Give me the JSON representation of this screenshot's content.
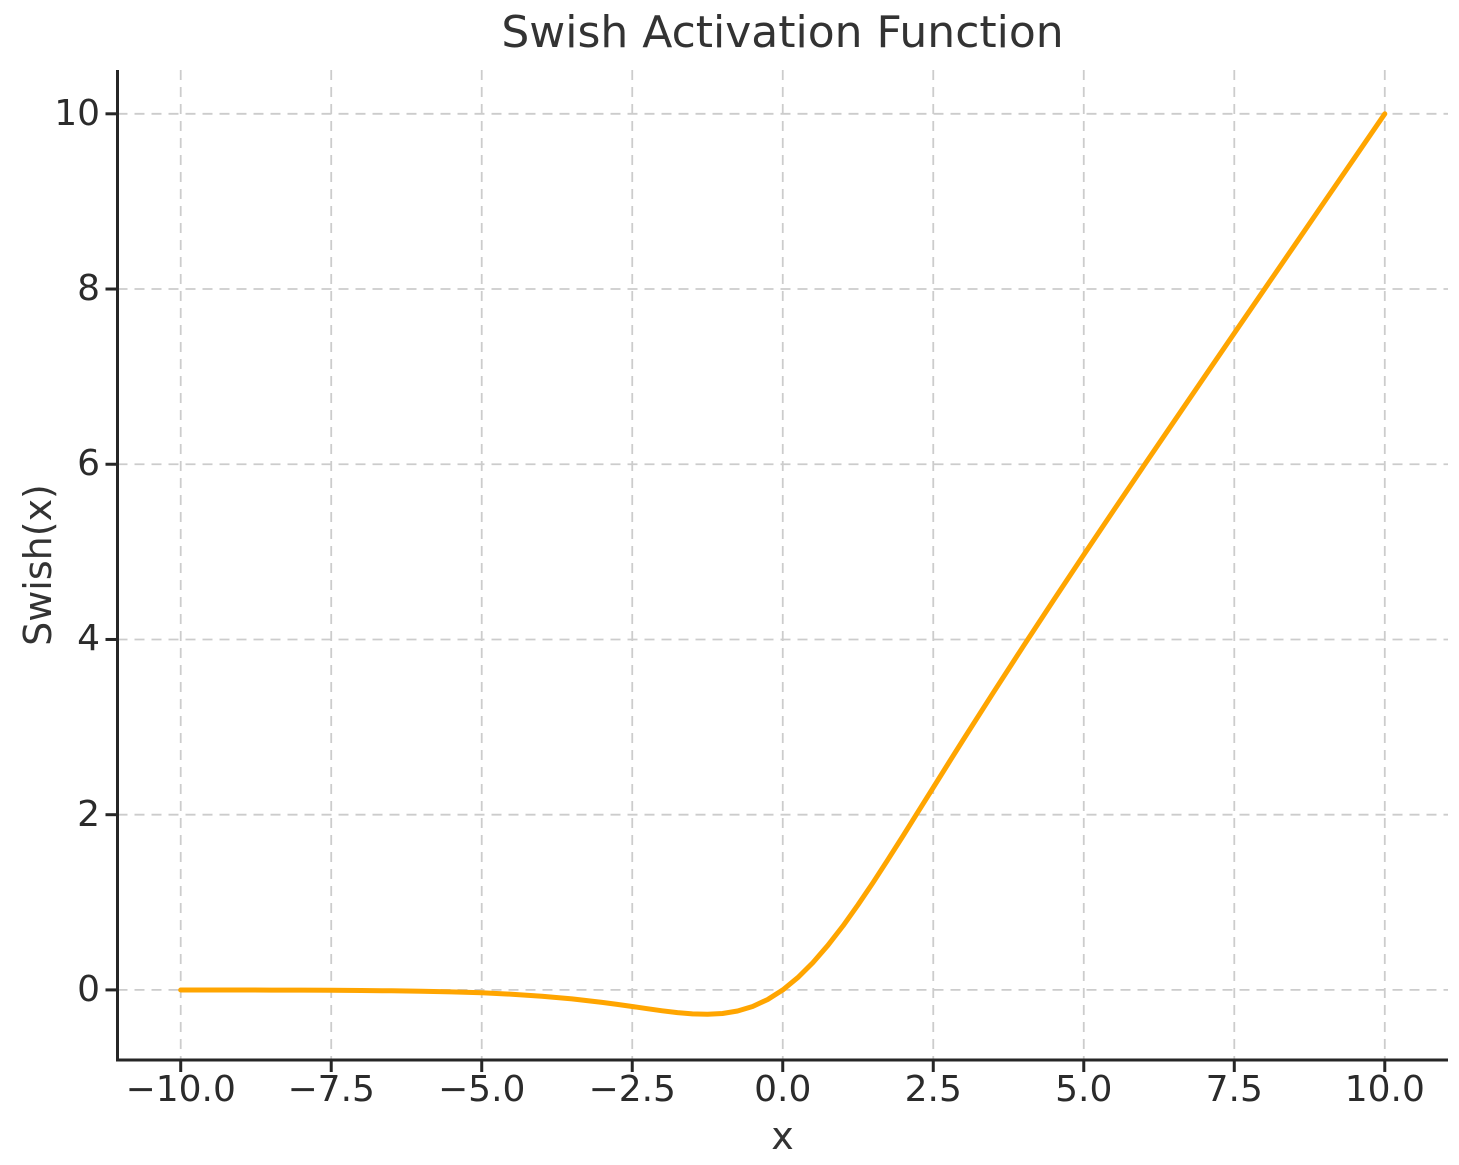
{
  "colors": {
    "line": "#FFA500",
    "grid": "#CCCCCC",
    "axis": "#262626",
    "text": "#333333",
    "background": "#FFFFFF"
  },
  "chart_data": {
    "type": "line",
    "title": "Swish Activation Function",
    "xlabel": "x",
    "ylabel": "Swish(x)",
    "xlim": [
      -11.05,
      11.05
    ],
    "ylim": [
      -0.8,
      10.5
    ],
    "xticks": [
      -10.0,
      -7.5,
      -5.0,
      -2.5,
      0.0,
      2.5,
      5.0,
      7.5,
      10.0
    ],
    "xtick_labels": [
      "−10.0",
      "−7.5",
      "−5.0",
      "−2.5",
      "0.0",
      "2.5",
      "5.0",
      "7.5",
      "10.0"
    ],
    "yticks": [
      0,
      2,
      4,
      6,
      8,
      10
    ],
    "ytick_labels": [
      "0",
      "2",
      "4",
      "6",
      "8",
      "10"
    ],
    "grid": true,
    "grid_style": "dashed",
    "legend": "none",
    "series": [
      {
        "name": "Swish",
        "color": "#FFA500",
        "x": [
          -10,
          -9.5,
          -9,
          -8.5,
          -8,
          -7.5,
          -7,
          -6.5,
          -6,
          -5.5,
          -5,
          -4.5,
          -4,
          -3.5,
          -3,
          -2.75,
          -2.5,
          -2.25,
          -2,
          -1.75,
          -1.5,
          -1.25,
          -1,
          -0.75,
          -0.5,
          -0.25,
          0,
          0.25,
          0.5,
          0.75,
          1,
          1.25,
          1.5,
          1.75,
          2,
          2.25,
          2.5,
          2.75,
          3,
          3.5,
          4,
          4.5,
          5,
          5.5,
          6,
          6.5,
          7,
          7.5,
          8,
          8.5,
          9,
          9.5,
          10
        ],
        "y": [
          -0.0005,
          -0.0007,
          -0.0011,
          -0.0017,
          -0.0027,
          -0.0041,
          -0.0064,
          -0.0098,
          -0.0148,
          -0.0224,
          -0.0335,
          -0.0494,
          -0.0719,
          -0.1026,
          -0.1423,
          -0.1652,
          -0.1897,
          -0.2145,
          -0.2384,
          -0.2591,
          -0.2736,
          -0.2784,
          -0.2689,
          -0.2406,
          -0.1888,
          -0.1095,
          0,
          0.1405,
          0.3112,
          0.5094,
          0.7311,
          0.9716,
          1.2264,
          1.4909,
          1.7616,
          2.0355,
          2.3104,
          2.5848,
          2.8577,
          3.3974,
          3.9281,
          4.4506,
          4.9665,
          5.4776,
          5.9852,
          6.4902,
          6.9936,
          7.4959,
          7.9973,
          8.4983,
          8.9989,
          9.4993,
          9.9995
        ]
      }
    ]
  }
}
